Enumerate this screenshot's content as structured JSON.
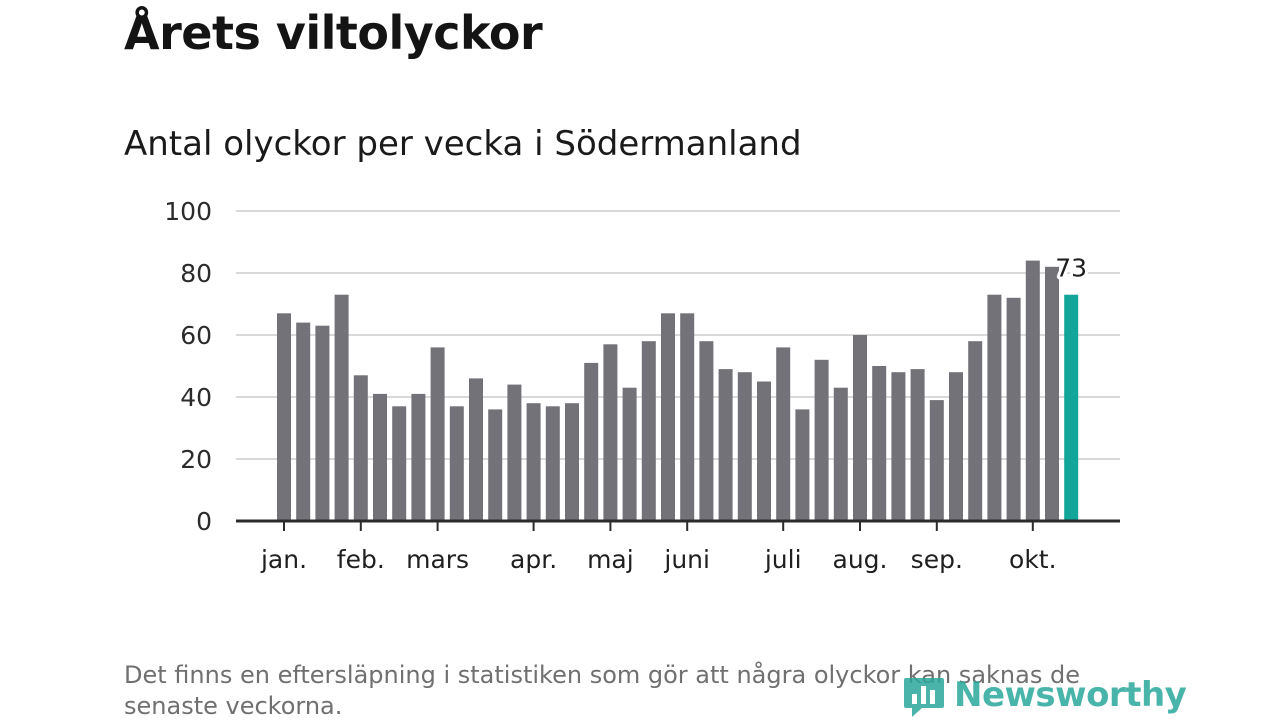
{
  "title": "Årets viltolyckor",
  "subtitle": "Antal olyckor per vecka i Södermanland",
  "footnote": "Det finns en eftersläpning i statistiken som gör att några olyckor kan saknas de senaste veckorna.",
  "logo": {
    "text": "Newsworthy",
    "icon": "chart-icon"
  },
  "colors": {
    "bar": "#737278",
    "highlight": "#12a69a",
    "grid": "#d9d9d9",
    "axis": "#2b2b2b"
  },
  "chart_data": {
    "type": "bar",
    "title": "Antal olyckor per vecka i Södermanland",
    "xlabel": "",
    "ylabel": "",
    "ylim": [
      0,
      100
    ],
    "yticks": [
      0,
      20,
      40,
      60,
      80,
      100
    ],
    "grid": true,
    "values": [
      67,
      64,
      63,
      73,
      47,
      41,
      37,
      41,
      56,
      37,
      46,
      36,
      44,
      38,
      37,
      38,
      51,
      57,
      43,
      58,
      67,
      67,
      58,
      49,
      48,
      45,
      56,
      36,
      52,
      43,
      60,
      50,
      48,
      49,
      39,
      48,
      58,
      73,
      72,
      84,
      82,
      73
    ],
    "highlight_index": 41,
    "highlight_label": "73",
    "month_labels": [
      {
        "label": "jan.",
        "bar_index": 0
      },
      {
        "label": "feb.",
        "bar_index": 4
      },
      {
        "label": "mars",
        "bar_index": 8
      },
      {
        "label": "apr.",
        "bar_index": 13
      },
      {
        "label": "maj",
        "bar_index": 17
      },
      {
        "label": "juni",
        "bar_index": 21
      },
      {
        "label": "juli",
        "bar_index": 26
      },
      {
        "label": "aug.",
        "bar_index": 30
      },
      {
        "label": "sep.",
        "bar_index": 34
      },
      {
        "label": "okt.",
        "bar_index": 39
      }
    ]
  }
}
